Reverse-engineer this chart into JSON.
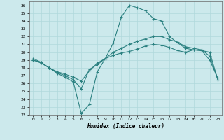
{
  "xlabel": "Humidex (Indice chaleur)",
  "bg_color": "#cce9ec",
  "line_color": "#2a8080",
  "grid_color": "#b0d8dc",
  "xlim": [
    -0.5,
    23.5
  ],
  "ylim": [
    22,
    36.5
  ],
  "yticks": [
    22,
    23,
    24,
    25,
    26,
    27,
    28,
    29,
    30,
    31,
    32,
    33,
    34,
    35,
    36
  ],
  "xticks": [
    0,
    1,
    2,
    3,
    4,
    5,
    6,
    7,
    8,
    9,
    10,
    11,
    12,
    13,
    14,
    15,
    16,
    17,
    18,
    19,
    20,
    21,
    22,
    23
  ],
  "line1_x": [
    0,
    1,
    2,
    3,
    4,
    5,
    6,
    7,
    8,
    9,
    10,
    11,
    12,
    13,
    14,
    15,
    16,
    17,
    18,
    19,
    20,
    21,
    22,
    23
  ],
  "line1_y": [
    29.0,
    28.6,
    28.0,
    27.5,
    27.2,
    26.8,
    26.3,
    27.6,
    28.6,
    29.2,
    30.0,
    30.5,
    31.0,
    31.4,
    31.7,
    32.0,
    32.0,
    31.6,
    31.3,
    30.7,
    30.5,
    30.3,
    29.5,
    26.5
  ],
  "line2_x": [
    0,
    1,
    2,
    3,
    4,
    5,
    6,
    7,
    8,
    9,
    10,
    11,
    12,
    13,
    14,
    15,
    16,
    17,
    18,
    19,
    20,
    21,
    22,
    23
  ],
  "line2_y": [
    29.2,
    28.7,
    28.0,
    27.3,
    26.8,
    26.2,
    22.2,
    23.3,
    27.5,
    29.2,
    31.2,
    34.5,
    36.0,
    35.7,
    35.3,
    34.3,
    34.0,
    32.0,
    31.2,
    30.5,
    30.3,
    30.2,
    29.0,
    26.7
  ],
  "line3_x": [
    0,
    1,
    2,
    3,
    4,
    5,
    6,
    7,
    8,
    9,
    10,
    11,
    12,
    13,
    14,
    15,
    16,
    17,
    18,
    19,
    20,
    21,
    22,
    23
  ],
  "line3_y": [
    29.0,
    28.7,
    28.0,
    27.4,
    27.0,
    26.5,
    25.3,
    27.8,
    28.4,
    29.2,
    29.6,
    29.9,
    30.1,
    30.4,
    30.8,
    31.0,
    30.9,
    30.6,
    30.2,
    30.0,
    30.3,
    30.2,
    30.0,
    26.5
  ]
}
